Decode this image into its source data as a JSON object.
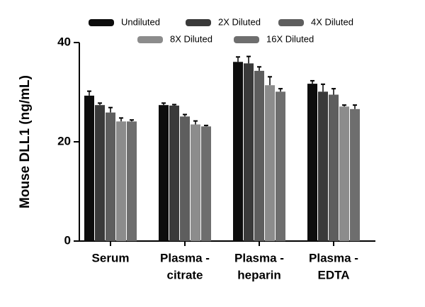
{
  "chart_data": {
    "type": "bar",
    "y_label": "Mouse DLL1 (ng/mL)",
    "categories": [
      [
        "Serum"
      ],
      [
        "Plasma -",
        "citrate"
      ],
      [
        "Plasma -",
        "heparin"
      ],
      [
        "Plasma -",
        "EDTA"
      ]
    ],
    "series": [
      {
        "name": "Undiluted",
        "color": "#0d0d0d",
        "values": [
          29.3,
          27.4,
          36.1,
          31.7
        ],
        "errors": [
          0.9,
          0.4,
          1.0,
          0.6
        ]
      },
      {
        "name": "2X Diluted",
        "color": "#3a3a3a",
        "values": [
          27.4,
          27.3,
          35.8,
          30.1
        ],
        "errors": [
          0.4,
          0.2,
          1.4,
          1.5
        ]
      },
      {
        "name": "4X Diluted",
        "color": "#5e5e5e",
        "values": [
          25.9,
          25.1,
          34.3,
          29.5
        ],
        "errors": [
          1.0,
          0.4,
          0.8,
          1.2
        ]
      },
      {
        "name": "8X Diluted",
        "color": "#8c8c8c",
        "values": [
          24.1,
          23.5,
          31.4,
          27.1
        ],
        "errors": [
          0.7,
          0.7,
          1.7,
          0.3
        ]
      },
      {
        "name": "16X Diluted",
        "color": "#6e6e6e",
        "values": [
          24.1,
          23.1,
          30.1,
          26.6
        ],
        "errors": [
          0.3,
          0.2,
          0.6,
          0.8
        ]
      }
    ],
    "ylim": [
      0,
      40
    ],
    "yticks": [
      0,
      20,
      40
    ]
  }
}
